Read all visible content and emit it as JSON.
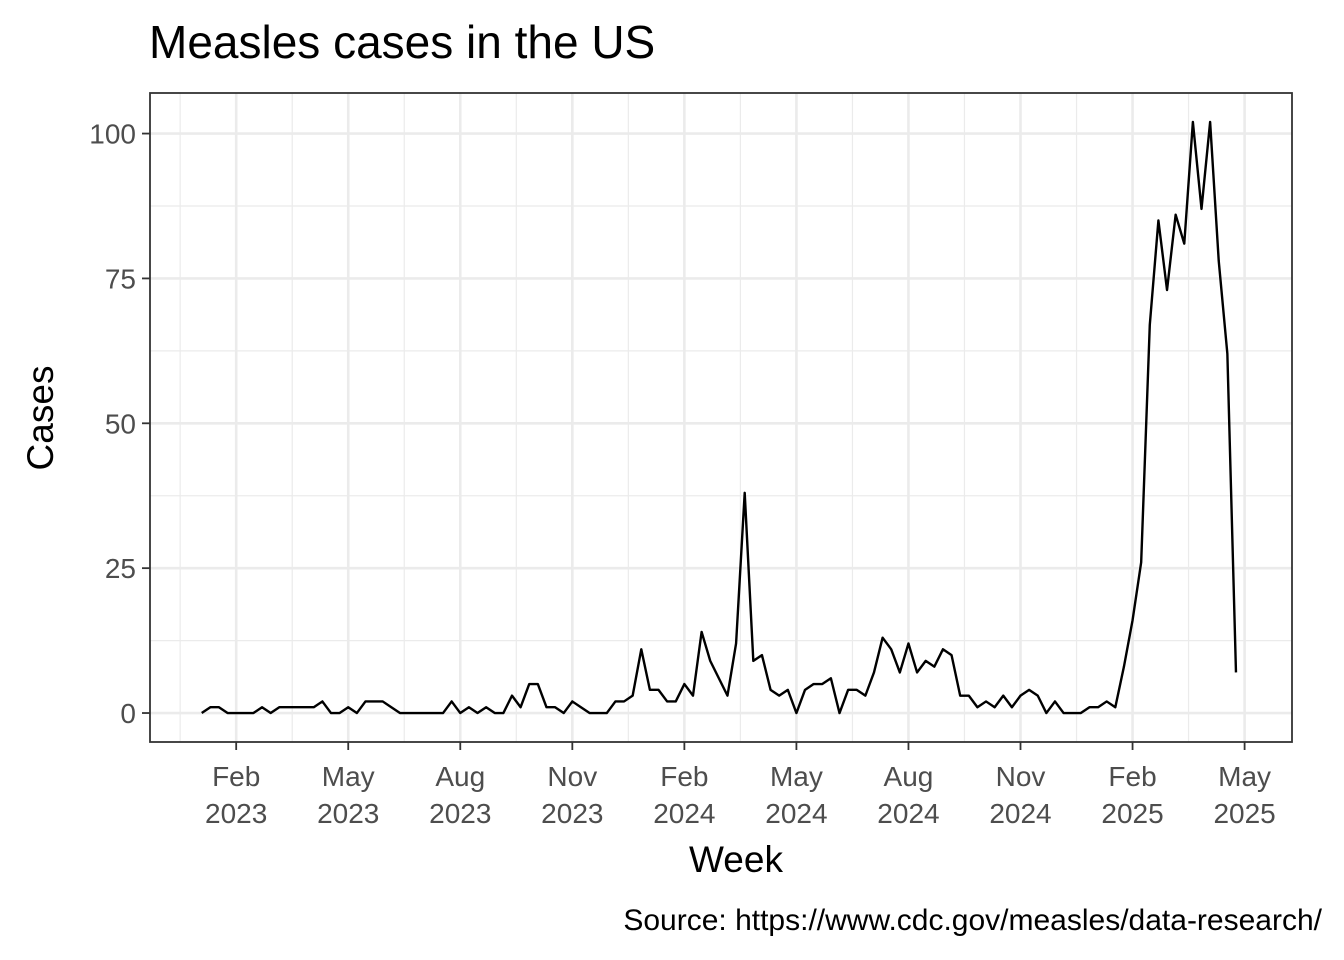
{
  "chart_data": {
    "type": "line",
    "title": "Measles cases in the US",
    "xlabel": "Week",
    "ylabel": "Cases",
    "caption": "Source: https://www.cdc.gov/measles/data-research/",
    "grid": true,
    "legend": "none",
    "ylim": [
      -5,
      107
    ],
    "yticks": [
      0,
      25,
      50,
      75,
      100
    ],
    "x_ticks": [
      {
        "month": "Feb",
        "year": "2023",
        "week": 4
      },
      {
        "month": "May",
        "year": "2023",
        "week": 17
      },
      {
        "month": "Aug",
        "year": "2023",
        "week": 30
      },
      {
        "month": "Nov",
        "year": "2023",
        "week": 43
      },
      {
        "month": "Feb",
        "year": "2024",
        "week": 56
      },
      {
        "month": "May",
        "year": "2024",
        "week": 69
      },
      {
        "month": "Aug",
        "year": "2024",
        "week": 82
      },
      {
        "month": "Nov",
        "year": "2024",
        "week": 95
      },
      {
        "month": "Feb",
        "year": "2025",
        "week": 108
      },
      {
        "month": "May",
        "year": "2025",
        "week": 121
      }
    ],
    "xlim": [
      -6,
      126.5
    ],
    "series": [
      {
        "name": "Cases",
        "values": [
          0,
          1,
          1,
          0,
          0,
          0,
          0,
          1,
          0,
          1,
          1,
          1,
          1,
          1,
          2,
          0,
          0,
          1,
          0,
          2,
          2,
          2,
          1,
          0,
          0,
          0,
          0,
          0,
          0,
          2,
          0,
          1,
          0,
          1,
          0,
          0,
          3,
          1,
          5,
          5,
          1,
          1,
          0,
          2,
          1,
          0,
          0,
          0,
          2,
          2,
          3,
          11,
          4,
          4,
          2,
          2,
          5,
          3,
          14,
          9,
          6,
          3,
          12,
          38,
          9,
          10,
          4,
          3,
          4,
          0,
          4,
          5,
          5,
          6,
          0,
          4,
          4,
          3,
          7,
          13,
          11,
          7,
          12,
          7,
          9,
          8,
          11,
          10,
          3,
          3,
          1,
          2,
          1,
          3,
          1,
          3,
          4,
          3,
          0,
          2,
          0,
          0,
          0,
          1,
          1,
          2,
          1,
          8,
          16,
          26,
          67,
          85,
          73,
          86,
          81,
          102,
          87,
          102,
          78,
          62,
          7
        ]
      }
    ]
  }
}
